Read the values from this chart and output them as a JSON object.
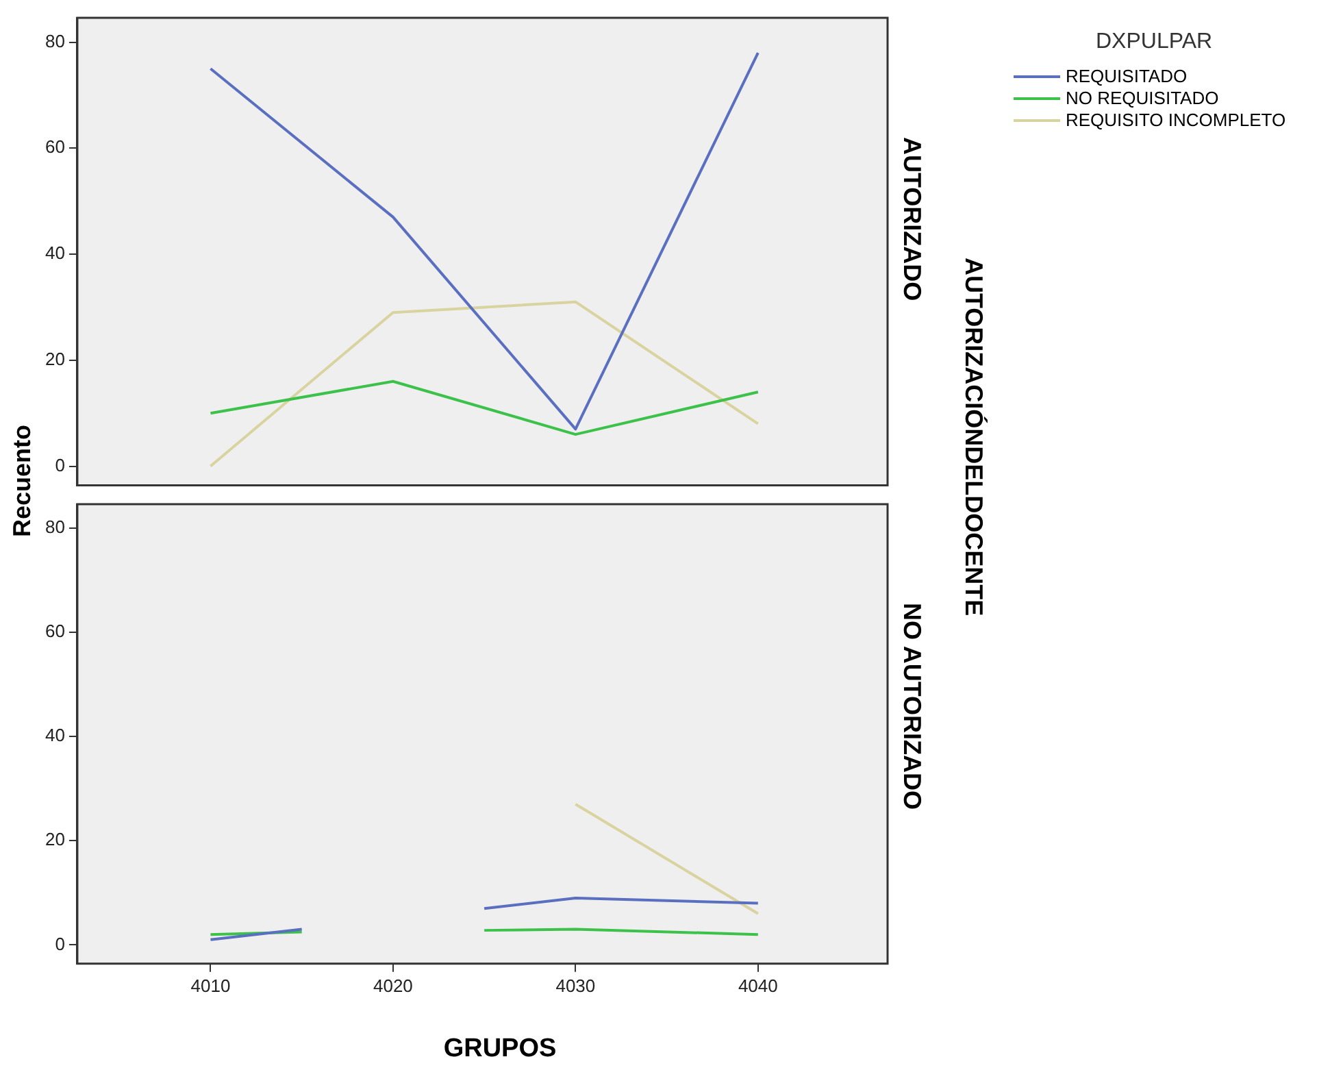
{
  "chart_data": [
    {
      "type": "line",
      "title": "AUTORIZADO",
      "ylabel": "Recuento",
      "legend_title": "DXPULPAR",
      "annotations": [
        "AUTORIZACIÓNDELDOCENTE"
      ],
      "legend": "right",
      "tick_labels": "y",
      "x": [
        4010,
        4020,
        4030,
        4040
      ],
      "series": [
        {
          "name": "REQUISITADO",
          "color": "#5a6fc0",
          "values": [
            75,
            47,
            7,
            78
          ]
        },
        {
          "name": "NO REQUISITADO",
          "color": "#3cc24a",
          "values": [
            10,
            16,
            6,
            14
          ]
        },
        {
          "name": "REQUISITO INCOMPLETO",
          "color": "#d9d3a0",
          "values": [
            0,
            29,
            31,
            8
          ]
        }
      ],
      "xlim": [
        4002.7,
        4047.1
      ],
      "ylim": [
        -3.6,
        84.6
      ],
      "yticks": [
        0,
        20,
        40,
        60,
        80
      ]
    },
    {
      "type": "line",
      "title": "NO AUTORIZADO",
      "xlabel": "GRUPOS",
      "x": [
        4010,
        4015,
        4020,
        4025,
        4030,
        4040
      ],
      "series": [
        {
          "color": "#5a6fc0",
          "values": [
            1,
            3,
            null,
            7,
            9,
            8
          ]
        },
        {
          "color": "#3cc24a",
          "values": [
            2,
            2.5,
            null,
            2.8,
            3,
            2
          ]
        },
        {
          "color": "#d9d3a0",
          "values": [
            null,
            null,
            null,
            null,
            27,
            6
          ]
        }
      ],
      "xlim": [
        4002.7,
        4047.1
      ],
      "xticks": [
        4010,
        4020,
        4030,
        4040
      ],
      "ylim": [
        -3.6,
        84.6
      ],
      "yticks": [
        0,
        20,
        40,
        60,
        80
      ]
    }
  ]
}
